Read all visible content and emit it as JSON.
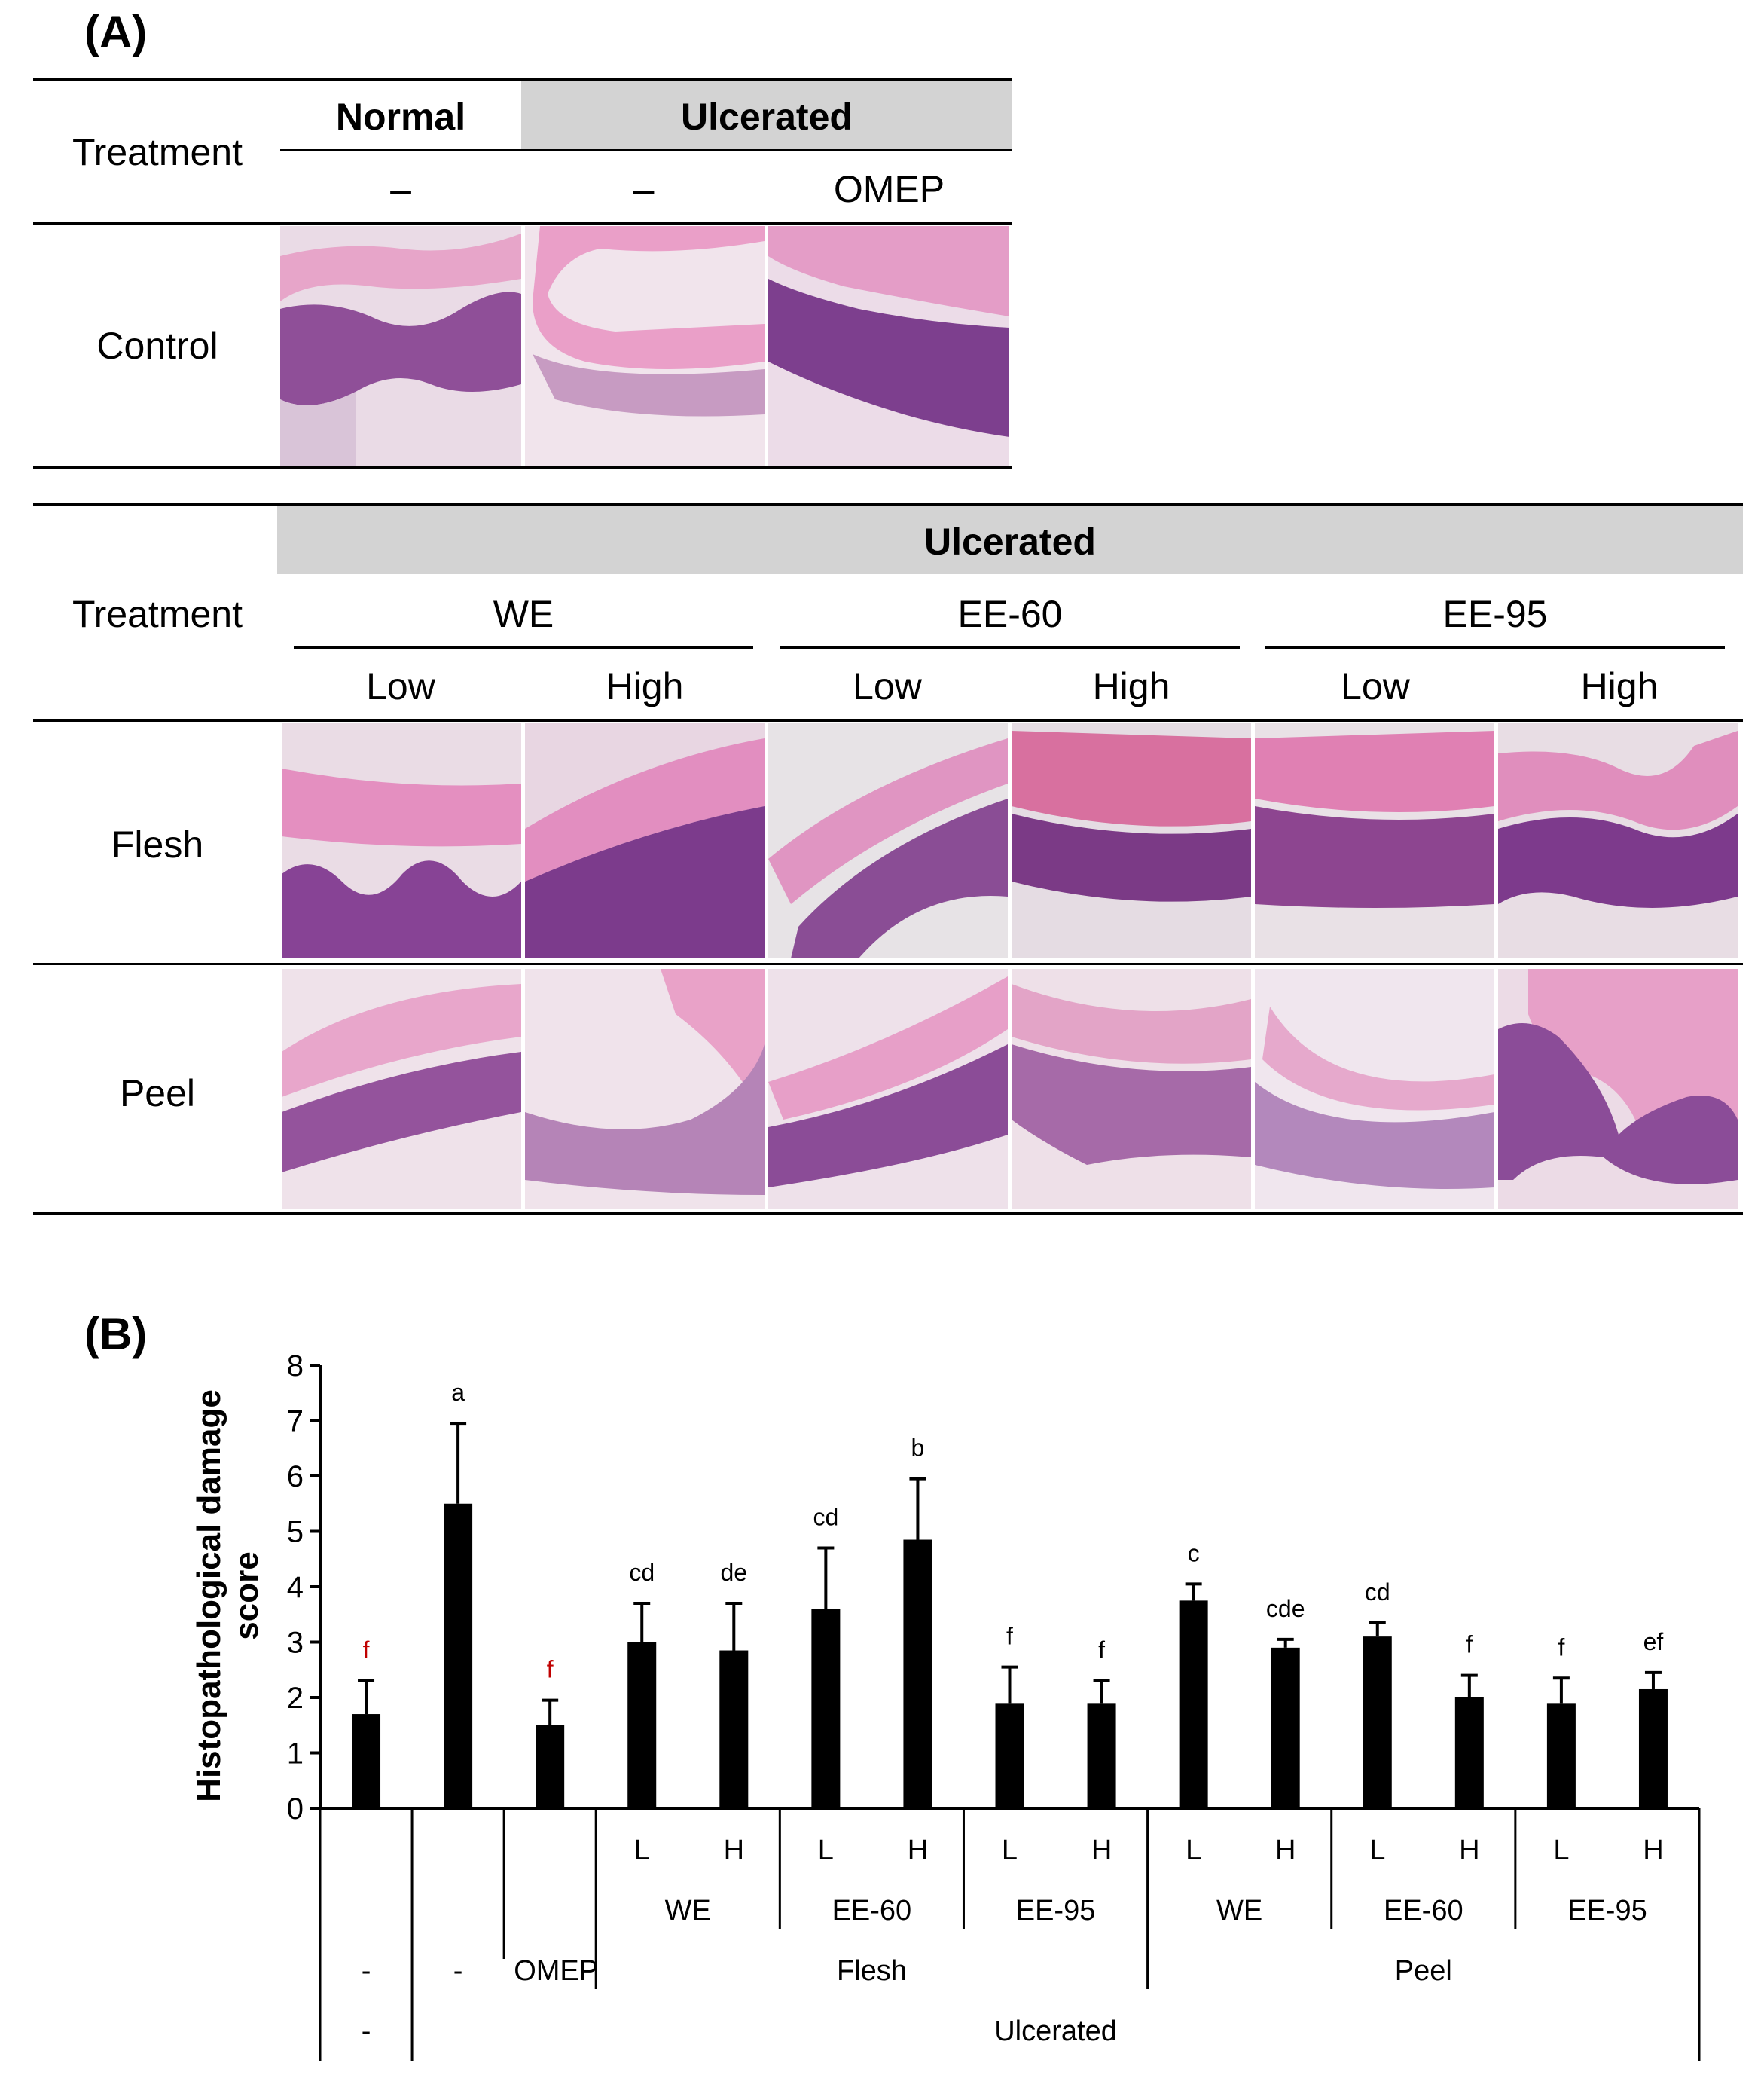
{
  "panel_a": {
    "label": "(A)",
    "top_table": {
      "treatment_label": "Treatment",
      "normal_label": "Normal",
      "ulcerated_label": "Ulcerated",
      "sub": [
        "–",
        "–",
        "OMEP"
      ],
      "row_label": "Control"
    },
    "bottom_table": {
      "treatment_label": "Treatment",
      "ulcerated_label": "Ulcerated",
      "groups": [
        "WE",
        "EE-60",
        "EE-95"
      ],
      "levels": [
        "Low",
        "High",
        "Low",
        "High",
        "Low",
        "High"
      ],
      "rows": [
        "Flesh",
        "Peel"
      ]
    }
  },
  "panel_b": {
    "label": "(B)",
    "ylabel_line1": "Histopathological damage",
    "ylabel_line2": "score",
    "x_rows": {
      "lh": [
        "L",
        "H",
        "L",
        "H",
        "L",
        "H",
        "L",
        "H",
        "L",
        "H",
        "L",
        "H"
      ],
      "extracts": [
        "WE",
        "EE-60",
        "EE-95",
        "WE",
        "EE-60",
        "EE-95"
      ],
      "first": [
        "-",
        "-",
        "OMEP"
      ],
      "tissue": [
        "Flesh",
        "Peel"
      ],
      "bottom_first": "-",
      "ulcerated": "Ulcerated"
    }
  },
  "chart_data": {
    "type": "bar",
    "ylim": [
      0,
      8
    ],
    "yticks": [
      0,
      1,
      2,
      3,
      4,
      5,
      6,
      7,
      8
    ],
    "ylabel": "Histopathological damage score",
    "categories": [
      "-",
      "-",
      "OMEP",
      "Flesh WE L",
      "Flesh WE H",
      "Flesh EE-60 L",
      "Flesh EE-60 H",
      "Flesh EE-95 L",
      "Flesh EE-95 H",
      "Peel WE L",
      "Peel WE H",
      "Peel EE-60 L",
      "Peel EE-60 H",
      "Peel EE-95 L",
      "Peel EE-95 H"
    ],
    "values": [
      1.7,
      5.5,
      1.5,
      3.0,
      2.85,
      3.6,
      4.85,
      1.9,
      1.9,
      3.75,
      2.9,
      3.1,
      2.0,
      1.9,
      2.15
    ],
    "errors": [
      0.6,
      1.45,
      0.45,
      0.7,
      0.85,
      1.1,
      1.1,
      0.65,
      0.4,
      0.3,
      0.15,
      0.25,
      0.4,
      0.45,
      0.3
    ],
    "letters": [
      "f",
      "a",
      "f",
      "cd",
      "de",
      "cd",
      "b",
      "f",
      "f",
      "c",
      "cde",
      "cd",
      "f",
      "f",
      "ef"
    ],
    "letter_colors": [
      "#c00000",
      "#000000",
      "#c00000",
      "#000000",
      "#000000",
      "#000000",
      "#000000",
      "#000000",
      "#000000",
      "#000000",
      "#000000",
      "#000000",
      "#000000",
      "#000000",
      "#000000"
    ],
    "bar_color": "#000000"
  },
  "colors": {
    "header_gray": "#d3d3d3",
    "tissue_pink": "#e8b6d2",
    "tissue_purple": "#8a4a95"
  }
}
